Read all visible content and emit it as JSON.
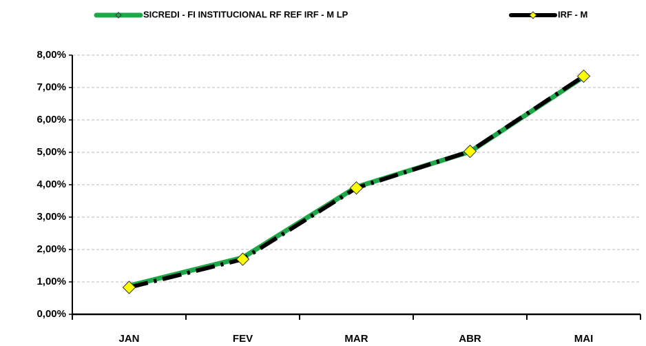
{
  "chart_data": {
    "type": "line",
    "categories": [
      "JAN",
      "FEV",
      "MAR",
      "ABR",
      "MAI"
    ],
    "series": [
      {
        "name": "SICREDI - FI INSTITUCIONAL RF REF IRF - M LP",
        "color": "#1fa84a",
        "values": [
          0.88,
          1.75,
          3.93,
          5.02,
          7.33
        ]
      },
      {
        "name": "IRF - M",
        "color": "#000000",
        "marker_color": "#ffff00",
        "values": [
          0.83,
          1.7,
          3.9,
          5.03,
          7.35
        ]
      }
    ],
    "ylim": [
      0,
      8
    ],
    "yticks": [
      {
        "value": 0,
        "label": "0,00%"
      },
      {
        "value": 1,
        "label": "1,00%"
      },
      {
        "value": 2,
        "label": "2,00%"
      },
      {
        "value": 3,
        "label": "3,00%"
      },
      {
        "value": 4,
        "label": "4,00%"
      },
      {
        "value": 5,
        "label": "5,00%"
      },
      {
        "value": 6,
        "label": "6,00%"
      },
      {
        "value": 7,
        "label": "7,00%"
      },
      {
        "value": 8,
        "label": "8,00%"
      }
    ],
    "grid": true,
    "legend": "top"
  }
}
